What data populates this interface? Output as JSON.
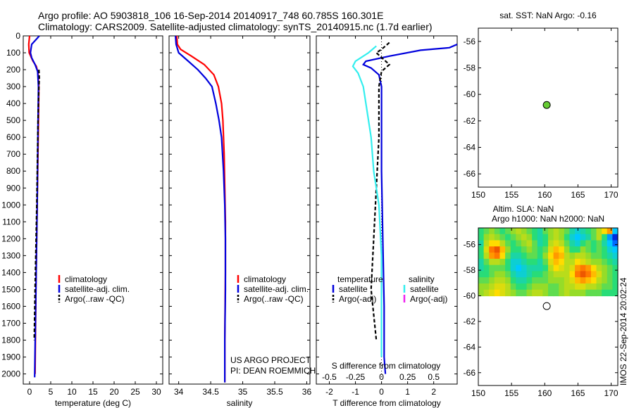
{
  "header": {
    "line1": "Argo profile: AO 5903818_106 16-Sep-2014 20140917_748 60.785S 160.301E",
    "line2": "Climatology: CARS2009. Satellite-adjusted climatology: synTS_20140915.nc (1.7d earlier)"
  },
  "credit": {
    "line1": "US ARGO PROJECT",
    "line2": "PI: DEAN ROEMMICH"
  },
  "watermark": "IMOS 22-Sep-2014 20:02:24",
  "colors": {
    "red": "#ff0000",
    "blue": "#0000dd",
    "black": "#000000",
    "cyan": "#33eeee",
    "magenta": "#ee22ee",
    "marker_fill": "#66cc33"
  },
  "chart_data": [
    {
      "type": "line",
      "id": "temperature",
      "xlabel": "temperature (deg C)",
      "xlim": [
        -1.5,
        31.5
      ],
      "xticks": [
        0,
        5,
        10,
        15,
        20,
        25,
        30
      ],
      "ylim": [
        2060,
        0
      ],
      "yticks": [
        0,
        100,
        200,
        300,
        400,
        500,
        600,
        700,
        800,
        900,
        1000,
        1100,
        1200,
        1300,
        1400,
        1500,
        1600,
        1700,
        1800,
        1900,
        2000
      ],
      "legend": [
        "climatology",
        "satellite-adj. clim.",
        "Argo(..raw -QC)"
      ],
      "series": [
        {
          "name": "climatology",
          "color": "red",
          "style": "solid",
          "points": [
            [
              0.0,
              0
            ],
            [
              -0.2,
              50
            ],
            [
              -0.1,
              100
            ],
            [
              0.8,
              150
            ],
            [
              1.6,
              180
            ],
            [
              2.0,
              220
            ],
            [
              2.2,
              300
            ],
            [
              2.1,
              500
            ],
            [
              1.8,
              1000
            ],
            [
              1.5,
              1500
            ],
            [
              1.3,
              2000
            ]
          ]
        },
        {
          "name": "satellite-adj. clim.",
          "color": "blue",
          "style": "solid",
          "points": [
            [
              2.3,
              0
            ],
            [
              1.6,
              20
            ],
            [
              0.5,
              50
            ],
            [
              0.2,
              100
            ],
            [
              0.5,
              130
            ],
            [
              1.3,
              170
            ],
            [
              1.9,
              210
            ],
            [
              2.1,
              300
            ],
            [
              2.0,
              500
            ],
            [
              1.8,
              1000
            ],
            [
              1.5,
              1500
            ],
            [
              1.2,
              2020
            ]
          ]
        },
        {
          "name": "Argo(..raw -QC)",
          "color": "black",
          "style": "dash",
          "points": [
            [
              2.2,
              200
            ],
            [
              2.3,
              250
            ],
            [
              2.2,
              300
            ],
            [
              2.0,
              500
            ],
            [
              1.7,
              1000
            ],
            [
              1.3,
              1500
            ],
            [
              1.1,
              1800
            ]
          ]
        }
      ]
    },
    {
      "type": "line",
      "id": "salinity",
      "xlabel": "salinity",
      "xlim": [
        33.85,
        36.05
      ],
      "xticks": [
        34,
        34.5,
        35,
        35.5,
        36
      ],
      "xticklabels": [
        "34",
        "34.5",
        "35",
        "35.5",
        "36"
      ],
      "ylim": [
        2060,
        0
      ],
      "legend": [
        "climatology",
        "satellite-adj. clim.",
        "Argo(..raw -QC)"
      ],
      "series": [
        {
          "name": "climatology",
          "color": "red",
          "style": "solid",
          "points": [
            [
              33.97,
              0
            ],
            [
              33.98,
              50
            ],
            [
              34.03,
              80
            ],
            [
              34.2,
              120
            ],
            [
              34.4,
              170
            ],
            [
              34.55,
              230
            ],
            [
              34.62,
              300
            ],
            [
              34.67,
              400
            ],
            [
              34.69,
              500
            ],
            [
              34.71,
              700
            ],
            [
              34.72,
              900
            ],
            [
              34.73,
              1100
            ],
            [
              34.73,
              1400
            ],
            [
              34.72,
              1800
            ],
            [
              34.72,
              2050
            ]
          ]
        },
        {
          "name": "satellite-adj. clim.",
          "color": "blue",
          "style": "solid",
          "points": [
            [
              33.95,
              0
            ],
            [
              33.96,
              50
            ],
            [
              34.0,
              100
            ],
            [
              34.15,
              150
            ],
            [
              34.3,
              200
            ],
            [
              34.42,
              250
            ],
            [
              34.52,
              300
            ],
            [
              34.58,
              400
            ],
            [
              34.63,
              500
            ],
            [
              34.67,
              600
            ],
            [
              34.7,
              800
            ],
            [
              34.72,
              1000
            ],
            [
              34.73,
              1200
            ],
            [
              34.73,
              1500
            ],
            [
              34.72,
              1800
            ],
            [
              34.72,
              2050
            ]
          ]
        }
      ]
    },
    {
      "type": "line",
      "id": "difference",
      "xlabel": "T difference from climatology",
      "x2label": "S difference from climatology",
      "xlim": [
        -2.5,
        2.9
      ],
      "xticks": [
        -2,
        -1,
        0,
        1,
        2
      ],
      "x2ticks": [
        -0.5,
        -0.25,
        0,
        0.25,
        0.5
      ],
      "ylim": [
        2060,
        0
      ],
      "legend_temperature": {
        "title": "temperature",
        "items": [
          "satellite",
          "Argo(-adj)"
        ]
      },
      "legend_salinity": {
        "title": "salinity",
        "items": [
          "satellite",
          "Argo(-adj)"
        ]
      },
      "series": [
        {
          "name": "temperature satellite",
          "color": "blue",
          "style": "solid",
          "points": [
            [
              2.9,
              50
            ],
            [
              2.6,
              70
            ],
            [
              1.5,
              85
            ],
            [
              0.3,
              120
            ],
            [
              -0.6,
              150
            ],
            [
              -0.7,
              170
            ],
            [
              -0.4,
              190
            ],
            [
              -0.1,
              230
            ],
            [
              0.0,
              300
            ],
            [
              0.0,
              500
            ],
            [
              0.0,
              800
            ],
            [
              0.05,
              1200
            ],
            [
              0.1,
              1600
            ],
            [
              0.1,
              1900
            ],
            [
              0.15,
              2000
            ]
          ]
        },
        {
          "name": "temperature Argo(-adj)",
          "color": "black",
          "style": "dash",
          "points": [
            [
              0.3,
              40
            ],
            [
              0.0,
              80
            ],
            [
              -0.2,
              100
            ],
            [
              0.3,
              170
            ],
            [
              0.0,
              210
            ],
            [
              -0.1,
              300
            ],
            [
              -0.1,
              600
            ],
            [
              -0.2,
              900
            ],
            [
              -0.3,
              1200
            ],
            [
              -0.4,
              1500
            ],
            [
              -0.2,
              1800
            ]
          ]
        },
        {
          "name": "salinity satellite",
          "color": "cyan",
          "style": "solid",
          "points": [
            [
              -0.2,
              60
            ],
            [
              -0.5,
              100
            ],
            [
              -1.0,
              150
            ],
            [
              -1.1,
              180
            ],
            [
              -0.9,
              220
            ],
            [
              -0.7,
              300
            ],
            [
              -0.6,
              400
            ],
            [
              -0.5,
              500
            ],
            [
              -0.4,
              600
            ],
            [
              -0.3,
              800
            ],
            [
              -0.1,
              1000
            ],
            [
              0.0,
              1300
            ],
            [
              0.0,
              1600
            ],
            [
              0.0,
              1900
            ]
          ]
        },
        {
          "name": "salinity Argo(-adj)",
          "color": "magenta",
          "style": "solid",
          "points": []
        }
      ]
    },
    {
      "type": "scatter",
      "id": "sst_map",
      "title": "sat. SST: NaN Argo: -0.16",
      "xlim": [
        150,
        171
      ],
      "xticks": [
        150,
        155,
        160,
        165,
        170
      ],
      "ylim": [
        -67,
        -55
      ],
      "yticks": [
        -56,
        -58,
        -60,
        -62,
        -64,
        -66
      ],
      "points": [
        {
          "x": 160.3,
          "y": -60.8,
          "fill": "marker_fill"
        }
      ]
    },
    {
      "type": "heatmap",
      "id": "sla_map",
      "title_line1": "Altim. SLA: NaN",
      "title_line2": "Argo h1000: NaN h2000: NaN",
      "xlim": [
        150,
        171
      ],
      "xticks": [
        150,
        155,
        160,
        165,
        170
      ],
      "ylim": [
        -67,
        -54.7
      ],
      "yticks": [
        -56,
        -58,
        -60,
        -62,
        -64,
        -66
      ],
      "grid_extent": {
        "lon": [
          150,
          171
        ],
        "lat": [
          -60,
          -54.7
        ]
      },
      "grid_ncols": 26,
      "grid": [
        [
          0.45,
          0.5,
          0.55,
          0.5,
          0.45,
          0.5,
          0.55,
          0.6,
          0.55,
          0.5,
          0.45,
          0.4,
          0.5,
          0.55,
          0.6,
          0.55,
          0.5,
          0.4,
          0.35,
          0.4,
          0.45,
          0.5,
          0.6,
          0.7,
          0.8,
          0.3
        ],
        [
          0.45,
          0.55,
          0.6,
          0.55,
          0.5,
          0.45,
          0.5,
          0.55,
          0.6,
          0.55,
          0.45,
          0.4,
          0.45,
          0.55,
          0.6,
          0.55,
          0.45,
          0.35,
          0.3,
          0.35,
          0.4,
          0.5,
          0.6,
          0.45,
          0.25,
          0.1
        ],
        [
          0.4,
          0.6,
          0.7,
          0.7,
          0.6,
          0.5,
          0.45,
          0.5,
          0.55,
          0.6,
          0.5,
          0.4,
          0.45,
          0.6,
          0.65,
          0.6,
          0.5,
          0.4,
          0.35,
          0.45,
          0.5,
          0.45,
          0.5,
          0.4,
          0.3,
          0.2
        ],
        [
          0.45,
          0.65,
          0.85,
          0.9,
          0.75,
          0.55,
          0.45,
          0.45,
          0.5,
          0.55,
          0.5,
          0.45,
          0.5,
          0.65,
          0.75,
          0.7,
          0.55,
          0.45,
          0.45,
          0.55,
          0.5,
          0.45,
          0.5,
          0.45,
          0.35,
          0.3
        ],
        [
          0.45,
          0.6,
          0.8,
          0.85,
          0.7,
          0.5,
          0.4,
          0.4,
          0.45,
          0.5,
          0.5,
          0.45,
          0.55,
          0.7,
          0.8,
          0.75,
          0.6,
          0.55,
          0.6,
          0.6,
          0.55,
          0.5,
          0.5,
          0.45,
          0.4,
          0.35
        ],
        [
          0.4,
          0.5,
          0.6,
          0.6,
          0.55,
          0.45,
          0.35,
          0.35,
          0.4,
          0.45,
          0.45,
          0.4,
          0.5,
          0.65,
          0.75,
          0.7,
          0.6,
          0.6,
          0.7,
          0.65,
          0.6,
          0.55,
          0.55,
          0.5,
          0.45,
          0.4
        ],
        [
          0.4,
          0.45,
          0.5,
          0.5,
          0.5,
          0.45,
          0.35,
          0.3,
          0.35,
          0.4,
          0.4,
          0.4,
          0.45,
          0.6,
          0.7,
          0.65,
          0.6,
          0.65,
          0.8,
          0.85,
          0.8,
          0.7,
          0.6,
          0.55,
          0.5,
          0.45
        ],
        [
          0.45,
          0.45,
          0.5,
          0.55,
          0.55,
          0.5,
          0.4,
          0.35,
          0.35,
          0.4,
          0.45,
          0.45,
          0.5,
          0.55,
          0.6,
          0.6,
          0.6,
          0.7,
          0.85,
          0.9,
          0.85,
          0.75,
          0.65,
          0.55,
          0.5,
          0.45
        ],
        [
          0.5,
          0.5,
          0.55,
          0.6,
          0.6,
          0.55,
          0.45,
          0.4,
          0.4,
          0.45,
          0.5,
          0.5,
          0.5,
          0.55,
          0.55,
          0.55,
          0.6,
          0.65,
          0.75,
          0.8,
          0.75,
          0.7,
          0.6,
          0.55,
          0.5,
          0.45
        ],
        [
          0.55,
          0.55,
          0.6,
          0.65,
          0.65,
          0.6,
          0.5,
          0.45,
          0.45,
          0.5,
          0.55,
          0.55,
          0.55,
          0.5,
          0.5,
          0.55,
          0.6,
          0.6,
          0.65,
          0.65,
          0.6,
          0.6,
          0.55,
          0.5,
          0.5,
          0.45
        ],
        [
          0.55,
          0.6,
          0.65,
          0.7,
          0.65,
          0.6,
          0.55,
          0.5,
          0.5,
          0.55,
          0.6,
          0.6,
          0.55,
          0.5,
          0.5,
          0.55,
          0.6,
          0.55,
          0.55,
          0.55,
          0.5,
          0.5,
          0.5,
          0.45,
          0.45,
          0.45
        ]
      ],
      "points": [
        {
          "x": 160.3,
          "y": -60.8,
          "fill": "#ffffff"
        }
      ]
    }
  ]
}
